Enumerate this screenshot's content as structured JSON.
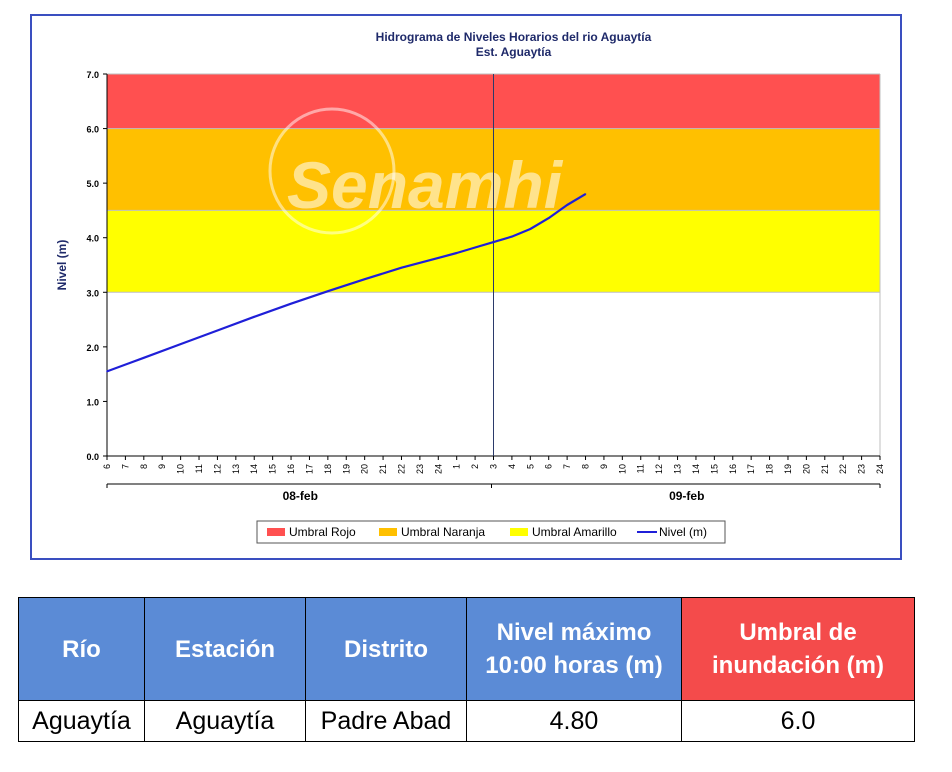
{
  "chart_data": {
    "type": "line",
    "title": "Hidrograma de Niveles Horarios del rio Aguaytía",
    "subtitle": "Est. Aguaytía",
    "ylabel": "Nivel (m)",
    "xlabel": "",
    "ylim": [
      0,
      7
    ],
    "y_ticks": [
      "0.0",
      "1.0",
      "2.0",
      "3.0",
      "4.0",
      "5.0",
      "6.0",
      "7.0"
    ],
    "x_tick_labels": [
      "6",
      "7",
      "8",
      "9",
      "10",
      "11",
      "12",
      "13",
      "14",
      "15",
      "16",
      "17",
      "18",
      "19",
      "20",
      "21",
      "22",
      "23",
      "24",
      "1",
      "2",
      "3",
      "4",
      "5",
      "6",
      "7",
      "8",
      "9",
      "10",
      "11",
      "12",
      "13",
      "14",
      "15",
      "16",
      "17",
      "18",
      "19",
      "20",
      "21",
      "22",
      "23",
      "24"
    ],
    "day_groups": [
      "08-feb",
      "09-feb"
    ],
    "thresholds": [
      {
        "name": "Umbral Rojo",
        "from": 6.0,
        "to": 7.0,
        "color": "#ff5050"
      },
      {
        "name": "Umbral Naranja",
        "from": 4.5,
        "to": 6.0,
        "color": "#ffc000"
      },
      {
        "name": "Umbral Amarillo",
        "from": 3.0,
        "to": 4.5,
        "color": "#ffff00"
      }
    ],
    "series": [
      {
        "name": "Nivel (m)",
        "color": "#1f1fd8",
        "points": [
          [
            0,
            1.55
          ],
          [
            2,
            1.8
          ],
          [
            4,
            2.05
          ],
          [
            6,
            2.3
          ],
          [
            8,
            2.55
          ],
          [
            10,
            2.79
          ],
          [
            12,
            3.02
          ],
          [
            14,
            3.24
          ],
          [
            16,
            3.45
          ],
          [
            18,
            3.63
          ],
          [
            19,
            3.72
          ],
          [
            20,
            3.82
          ],
          [
            21,
            3.92
          ],
          [
            22,
            4.02
          ],
          [
            23,
            4.16
          ],
          [
            24,
            4.36
          ],
          [
            25,
            4.6
          ],
          [
            26,
            4.8
          ]
        ]
      }
    ],
    "legend": [
      "Umbral Rojo",
      "Umbral Naranja",
      "Umbral Amarillo",
      "Nivel (m)"
    ],
    "legend_position": "bottom",
    "watermark": "Senamhi",
    "grid": false
  },
  "table": {
    "headers": [
      "Río",
      "Estación",
      "Distrito",
      "Nivel máximo 10:00 horas (m)",
      "Umbral de inundación (m)"
    ],
    "row": [
      "Aguaytía",
      "Aguaytía",
      "Padre Abad",
      "4.80",
      "6.0"
    ]
  }
}
